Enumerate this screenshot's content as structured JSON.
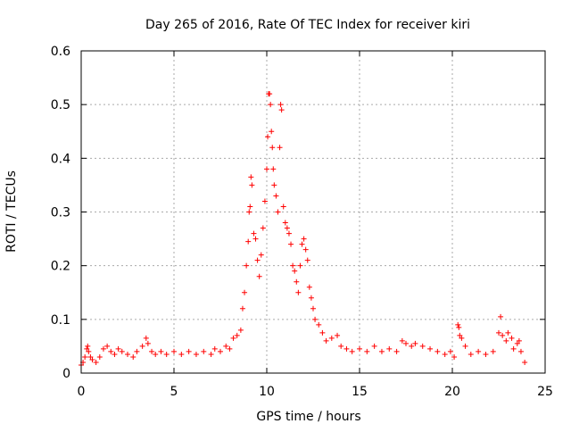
{
  "chart_data": {
    "type": "scatter",
    "title": "Day 265 of 2016, Rate Of TEC Index for receiver kiri",
    "xlabel": "GPS time / hours",
    "ylabel": "ROTI / TECUs",
    "xlim": [
      0,
      25
    ],
    "ylim": [
      0,
      0.6
    ],
    "xticks": [
      0,
      5,
      10,
      15,
      20,
      25
    ],
    "xtick_labels": [
      "0",
      "5",
      "10",
      "15",
      "20",
      "25"
    ],
    "yticks": [
      0,
      0.1,
      0.2,
      0.3,
      0.4,
      0.5,
      0.6
    ],
    "ytick_labels": [
      "0",
      "0.1",
      "0.2",
      "0.3",
      "0.4",
      "0.5",
      "0.6"
    ],
    "grid": true,
    "marker": "+",
    "color": "#ff0000",
    "series": [
      {
        "name": "ROTI",
        "points": [
          [
            0.0,
            0.015
          ],
          [
            0.1,
            0.02
          ],
          [
            0.2,
            0.03
          ],
          [
            0.3,
            0.045
          ],
          [
            0.35,
            0.05
          ],
          [
            0.4,
            0.04
          ],
          [
            0.5,
            0.03
          ],
          [
            0.6,
            0.025
          ],
          [
            0.8,
            0.02
          ],
          [
            1.0,
            0.03
          ],
          [
            1.2,
            0.045
          ],
          [
            1.4,
            0.05
          ],
          [
            1.6,
            0.04
          ],
          [
            1.8,
            0.035
          ],
          [
            2.0,
            0.045
          ],
          [
            2.2,
            0.04
          ],
          [
            2.5,
            0.035
          ],
          [
            2.8,
            0.03
          ],
          [
            3.0,
            0.04
          ],
          [
            3.3,
            0.05
          ],
          [
            3.5,
            0.065
          ],
          [
            3.6,
            0.055
          ],
          [
            3.8,
            0.04
          ],
          [
            4.0,
            0.035
          ],
          [
            4.3,
            0.04
          ],
          [
            4.6,
            0.035
          ],
          [
            5.0,
            0.04
          ],
          [
            5.4,
            0.035
          ],
          [
            5.8,
            0.04
          ],
          [
            6.2,
            0.035
          ],
          [
            6.6,
            0.04
          ],
          [
            7.0,
            0.035
          ],
          [
            7.2,
            0.045
          ],
          [
            7.5,
            0.04
          ],
          [
            7.8,
            0.05
          ],
          [
            8.0,
            0.045
          ],
          [
            8.2,
            0.065
          ],
          [
            8.4,
            0.07
          ],
          [
            8.6,
            0.08
          ],
          [
            8.7,
            0.12
          ],
          [
            8.8,
            0.15
          ],
          [
            8.9,
            0.2
          ],
          [
            9.0,
            0.245
          ],
          [
            9.05,
            0.3
          ],
          [
            9.1,
            0.31
          ],
          [
            9.15,
            0.365
          ],
          [
            9.2,
            0.35
          ],
          [
            9.3,
            0.26
          ],
          [
            9.4,
            0.25
          ],
          [
            9.5,
            0.21
          ],
          [
            9.6,
            0.18
          ],
          [
            9.7,
            0.22
          ],
          [
            9.8,
            0.27
          ],
          [
            9.9,
            0.32
          ],
          [
            10.0,
            0.38
          ],
          [
            10.05,
            0.44
          ],
          [
            10.1,
            0.52
          ],
          [
            10.15,
            0.52
          ],
          [
            10.2,
            0.5
          ],
          [
            10.25,
            0.45
          ],
          [
            10.3,
            0.42
          ],
          [
            10.35,
            0.38
          ],
          [
            10.4,
            0.35
          ],
          [
            10.5,
            0.33
          ],
          [
            10.6,
            0.3
          ],
          [
            10.7,
            0.42
          ],
          [
            10.75,
            0.5
          ],
          [
            10.8,
            0.49
          ],
          [
            10.9,
            0.31
          ],
          [
            11.0,
            0.28
          ],
          [
            11.1,
            0.27
          ],
          [
            11.2,
            0.26
          ],
          [
            11.3,
            0.24
          ],
          [
            11.4,
            0.2
          ],
          [
            11.5,
            0.19
          ],
          [
            11.6,
            0.17
          ],
          [
            11.7,
            0.15
          ],
          [
            11.8,
            0.2
          ],
          [
            11.9,
            0.24
          ],
          [
            12.0,
            0.25
          ],
          [
            12.1,
            0.23
          ],
          [
            12.2,
            0.21
          ],
          [
            12.3,
            0.16
          ],
          [
            12.4,
            0.14
          ],
          [
            12.5,
            0.12
          ],
          [
            12.6,
            0.1
          ],
          [
            12.8,
            0.09
          ],
          [
            13.0,
            0.075
          ],
          [
            13.2,
            0.06
          ],
          [
            13.5,
            0.065
          ],
          [
            13.8,
            0.07
          ],
          [
            14.0,
            0.05
          ],
          [
            14.3,
            0.045
          ],
          [
            14.6,
            0.04
          ],
          [
            15.0,
            0.045
          ],
          [
            15.4,
            0.04
          ],
          [
            15.8,
            0.05
          ],
          [
            16.2,
            0.04
          ],
          [
            16.6,
            0.045
          ],
          [
            17.0,
            0.04
          ],
          [
            17.3,
            0.06
          ],
          [
            17.5,
            0.055
          ],
          [
            17.8,
            0.05
          ],
          [
            18.0,
            0.055
          ],
          [
            18.4,
            0.05
          ],
          [
            18.8,
            0.045
          ],
          [
            19.2,
            0.04
          ],
          [
            19.6,
            0.035
          ],
          [
            19.9,
            0.04
          ],
          [
            20.1,
            0.03
          ],
          [
            20.3,
            0.09
          ],
          [
            20.35,
            0.085
          ],
          [
            20.4,
            0.07
          ],
          [
            20.5,
            0.065
          ],
          [
            20.7,
            0.05
          ],
          [
            21.0,
            0.035
          ],
          [
            21.4,
            0.04
          ],
          [
            21.8,
            0.035
          ],
          [
            22.2,
            0.04
          ],
          [
            22.5,
            0.075
          ],
          [
            22.6,
            0.105
          ],
          [
            22.7,
            0.07
          ],
          [
            22.9,
            0.06
          ],
          [
            23.0,
            0.075
          ],
          [
            23.2,
            0.065
          ],
          [
            23.3,
            0.045
          ],
          [
            23.5,
            0.055
          ],
          [
            23.6,
            0.06
          ],
          [
            23.7,
            0.04
          ],
          [
            23.9,
            0.02
          ]
        ]
      }
    ]
  }
}
